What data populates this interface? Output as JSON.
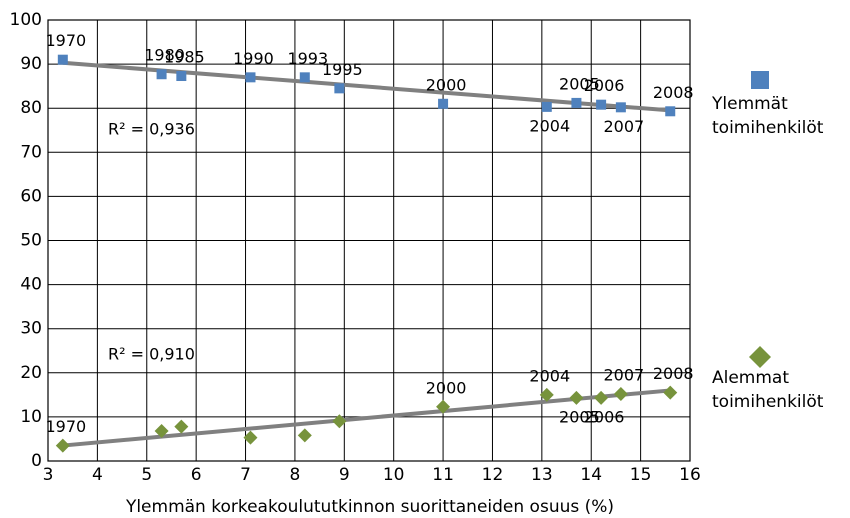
{
  "chart_data": {
    "type": "scatter",
    "xlabel": "Ylemmän korkeakoulututkinnon suorittaneiden osuus (%)",
    "xlim": [
      3,
      16
    ],
    "xticks": [
      3,
      4,
      5,
      6,
      7,
      8,
      9,
      10,
      11,
      12,
      13,
      14,
      15,
      16
    ],
    "ylim": [
      0,
      100
    ],
    "yticks": [
      0,
      10,
      20,
      30,
      40,
      50,
      60,
      70,
      80,
      90,
      100
    ],
    "grid": true,
    "legend": "right",
    "annotations": [
      "R² = 0,936",
      "R² = 0,910"
    ],
    "series": [
      {
        "name": "Ylemmät toimihenkilöt",
        "color": "#4f81bd",
        "marker": "square",
        "x": [
          3.3,
          5.3,
          5.7,
          7.1,
          8.2,
          8.9,
          11.0,
          13.1,
          13.7,
          14.2,
          14.6,
          15.6
        ],
        "values": [
          91,
          87.7,
          87.3,
          87,
          87,
          84.5,
          81,
          80.3,
          81.2,
          80.8,
          80.2,
          79.3
        ],
        "point_labels": [
          "1970",
          "1980",
          "1985",
          "1990",
          "1993",
          "1995",
          "2000",
          "2004",
          "2005",
          "2006",
          "2007",
          "2008"
        ],
        "trendline": {
          "x": [
            3.3,
            15.6
          ],
          "y": [
            90.3,
            79.5
          ]
        }
      },
      {
        "name": "Alemmat toimihenkilöt",
        "color": "#77933c",
        "marker": "diamond",
        "x": [
          3.3,
          5.3,
          5.7,
          7.1,
          8.2,
          8.9,
          11.0,
          13.1,
          13.7,
          14.2,
          14.6,
          15.6
        ],
        "values": [
          3.5,
          6.8,
          7.8,
          5.3,
          5.8,
          9,
          12.3,
          15,
          14.3,
          14.3,
          15.2,
          15.5
        ],
        "point_labels": [
          "1970",
          null,
          null,
          null,
          null,
          null,
          "2000",
          "2004",
          "2005",
          "2006",
          "2007",
          "2008"
        ],
        "trendline": {
          "x": [
            3.3,
            15.6
          ],
          "y": [
            3.5,
            16
          ]
        }
      }
    ]
  }
}
